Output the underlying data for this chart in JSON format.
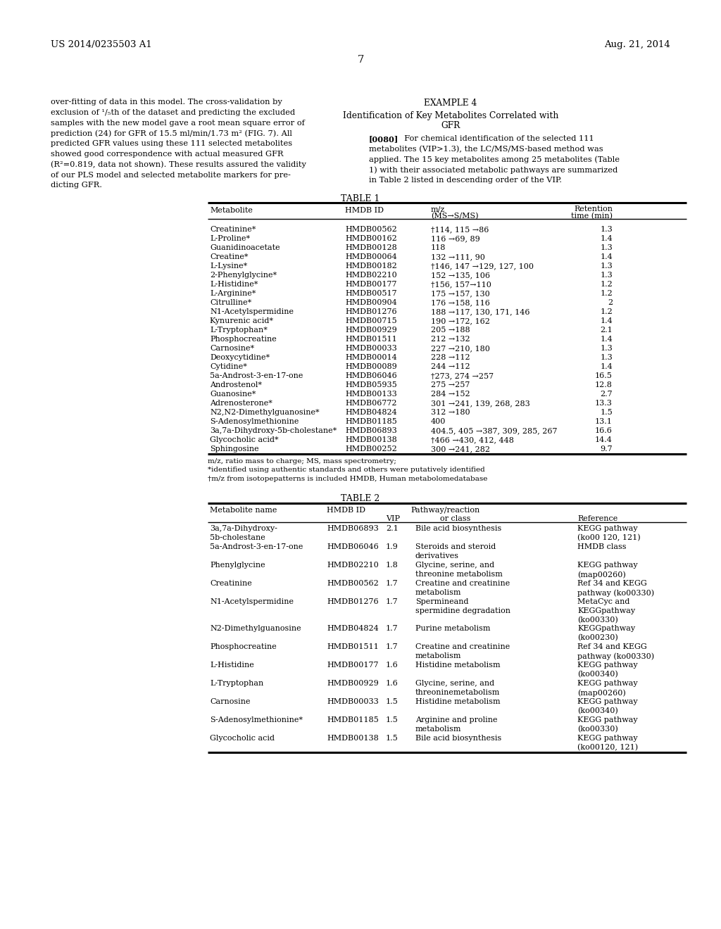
{
  "page_number": "7",
  "patent_left": "US 2014/0235503 A1",
  "patent_right": "Aug. 21, 2014",
  "table1_title": "TABLE 1",
  "table1_rows": [
    [
      "Creatinine*",
      "HMDB00562",
      "†114, 115 →86",
      "1.3"
    ],
    [
      "L-Proline*",
      "HMDB00162",
      "116 →69, 89",
      "1.4"
    ],
    [
      "Guanidinoacetate",
      "HMDB00128",
      "118",
      "1.3"
    ],
    [
      "Creatine*",
      "HMDB00064",
      "132 →111, 90",
      "1.4"
    ],
    [
      "L-Lysine*",
      "HMDB00182",
      "†146, 147 →129, 127, 100",
      "1.3"
    ],
    [
      "2-Phenylglycine*",
      "HMDB02210",
      "152 →135, 106",
      "1.3"
    ],
    [
      "L-Histidine*",
      "HMDB00177",
      "†156, 157→110",
      "1.2"
    ],
    [
      "L-Arginine*",
      "HMDB00517",
      "175 →157, 130",
      "1.2"
    ],
    [
      "Citrulline*",
      "HMDB00904",
      "176 →158, 116",
      "2"
    ],
    [
      "N1-Acetylspermidine",
      "HMDB01276",
      "188 →117, 130, 171, 146",
      "1.2"
    ],
    [
      "Kynurenic acid*",
      "HMDB00715",
      "190 →172, 162",
      "1.4"
    ],
    [
      "L-Tryptophan*",
      "HMDB00929",
      "205 →188",
      "2.1"
    ],
    [
      "Phosphocreatine",
      "HMDB01511",
      "212 →132",
      "1.4"
    ],
    [
      "Carnosine*",
      "HMDB00033",
      "227 →210, 180",
      "1.3"
    ],
    [
      "Deoxycytidine*",
      "HMDB00014",
      "228 →112",
      "1.3"
    ],
    [
      "Cytidine*",
      "HMDB00089",
      "244 →112",
      "1.4"
    ],
    [
      "5a-Androst-3-en-17-one",
      "HMDB06046",
      "†273, 274 →257",
      "16.5"
    ],
    [
      "Androstenol*",
      "HMDB05935",
      "275 →257",
      "12.8"
    ],
    [
      "Guanosine*",
      "HMDB00133",
      "284 →152",
      "2.7"
    ],
    [
      "Adrenosterone*",
      "HMDB06772",
      "301 →241, 139, 268, 283",
      "13.3"
    ],
    [
      "N2,N2-Dimethylguanosine*",
      "HMDB04824",
      "312 →180",
      "1.5"
    ],
    [
      "S-Adenosylmethionine",
      "HMDB01185",
      "400",
      "13.1"
    ],
    [
      "3a,7a-Dihydroxy-5b-cholestane*",
      "HMDB06893",
      "404.5, 405 →387, 309, 285, 267",
      "16.6"
    ],
    [
      "Glycocholic acid*",
      "HMDB00138",
      "†466 →430, 412, 448",
      "14.4"
    ],
    [
      "Sphingosine",
      "HMDB00252",
      "300 →241, 282",
      "9.7"
    ]
  ],
  "table1_footnotes": [
    "m/z, ratio mass to charge; MS, mass spectrometry;",
    "*identified using authentic standards and others were putatively identified",
    "†m/z from isotopepatterns is included HMDB, Human metabolomedatabase"
  ],
  "table2_title": "TABLE 2",
  "table2_rows": [
    [
      "3a,7a-Dihydroxy-\n5b-cholestane",
      "HMDB06893",
      "2.1",
      "Bile acid biosynthesis",
      "KEGG pathway\n(ko00 120, 121)"
    ],
    [
      "5a-Androst-3-en-17-one",
      "HMDB06046",
      "1.9",
      "Steroids and steroid\nderivatives",
      "HMDB class"
    ],
    [
      "Phenylglycine",
      "HMDB02210",
      "1.8",
      "Glycine, serine, and\nthreonine metabolism",
      "KEGG pathway\n(map00260)"
    ],
    [
      "Creatinine",
      "HMDB00562",
      "1.7",
      "Creatine and creatinine\nmetabolism",
      "Ref 34 and KEGG\npathway (ko00330)"
    ],
    [
      "N1-Acetylspermidine",
      "HMDB01276",
      "1.7",
      "Spermineand\nspermidine degradation",
      "MetaCyc and\nKEGGpathway\n(ko00330)"
    ],
    [
      "N2-Dimethylguanosine",
      "HMDB04824",
      "1.7",
      "Purine metabolism",
      "KEGGpathway\n(ko00230)"
    ],
    [
      "Phosphocreatine",
      "HMDB01511",
      "1.7",
      "Creatine and creatinine\nmetabolism",
      "Ref 34 and KEGG\npathway (ko00330)"
    ],
    [
      "L-Histidine",
      "HMDB00177",
      "1.6",
      "Histidine metabolism",
      "KEGG pathway\n(ko00340)"
    ],
    [
      "L-Tryptophan",
      "HMDB00929",
      "1.6",
      "Glycine, serine, and\nthreoninemetabolism",
      "KEGG pathway\n(map00260)"
    ],
    [
      "Carnosine",
      "HMDB00033",
      "1.5",
      "Histidine metabolism",
      "KEGG pathway\n(ko00340)"
    ],
    [
      "S-Adenosylmethionine*",
      "HMDB01185",
      "1.5",
      "Arginine and proline\nmetabolism",
      "KEGG pathway\n(ko00330)"
    ],
    [
      "Glycocholic acid",
      "HMDB00138",
      "1.5",
      "Bile acid biosynthesis",
      "KEGG pathway\n(ko00120, 121)"
    ]
  ]
}
